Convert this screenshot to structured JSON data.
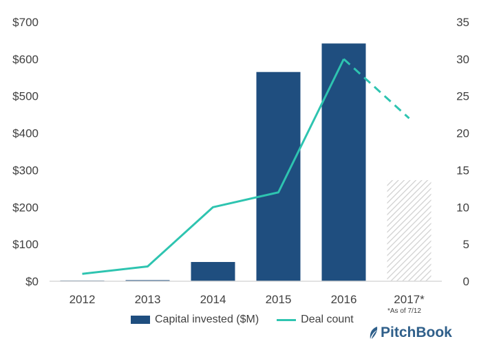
{
  "chart_data": {
    "type": "bar",
    "categories": [
      "2012",
      "2013",
      "2014",
      "2015",
      "2016",
      "2017*"
    ],
    "series": [
      {
        "name": "Capital invested ($M)",
        "kind": "bar",
        "axis": "left",
        "values": [
          2,
          3,
          52,
          565,
          642,
          273
        ],
        "hatched_categories": [
          "2017*"
        ]
      },
      {
        "name": "Deal count",
        "kind": "line",
        "axis": "right",
        "values": [
          1,
          2,
          10,
          12,
          30,
          22
        ],
        "dashed_categories": [
          "2016",
          "2017*"
        ]
      }
    ],
    "title": "",
    "xlabel": "",
    "ylabel": "",
    "y_left": {
      "min": 0,
      "max": 700,
      "ticks": [
        "$0",
        "$100",
        "$200",
        "$300",
        "$400",
        "$500",
        "$600",
        "$700"
      ]
    },
    "y_right": {
      "min": 0,
      "max": 35,
      "ticks": [
        "0",
        "5",
        "10",
        "15",
        "20",
        "25",
        "30",
        "35"
      ]
    },
    "grid": false,
    "legend_position": "bottom",
    "colors": {
      "bar": "#1f4e7f",
      "line": "#2ec4b0",
      "hatch": "#d5d5d5",
      "axis": "#d9d9d9"
    }
  },
  "footnote": "*As of 7/12",
  "brand": {
    "name": "PitchBook",
    "icon": "pitchbook-leaf-icon"
  }
}
